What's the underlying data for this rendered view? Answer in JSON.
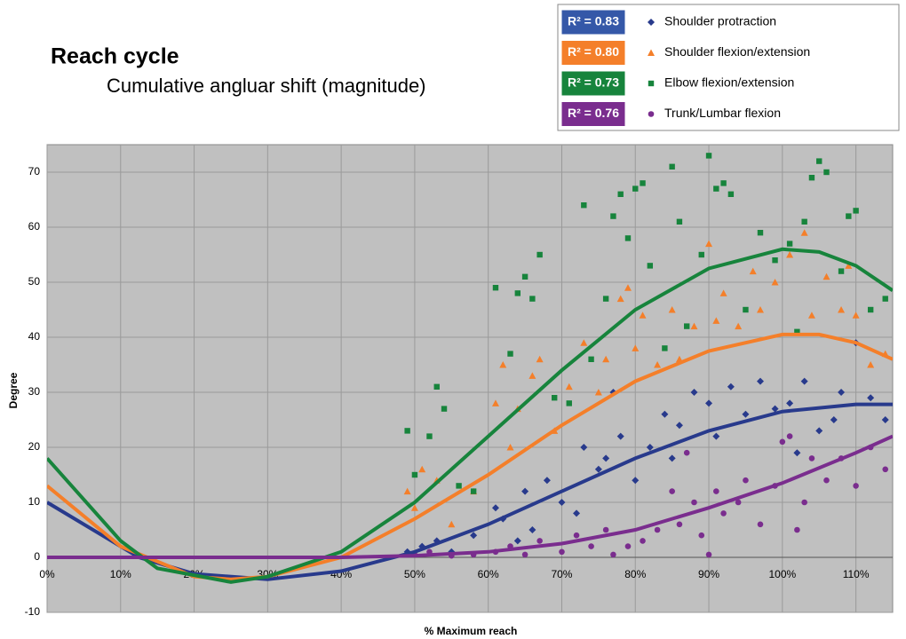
{
  "chart_data": {
    "type": "scatter",
    "title": "Reach cycle",
    "subtitle": "Cumulative angluar shift (magnitude)",
    "x_label": "% Maximum reach",
    "y_label": "Degree",
    "xlim": [
      0,
      115
    ],
    "ylim": [
      -10,
      75
    ],
    "xticks": [
      {
        "value": 0,
        "label": "0%"
      },
      {
        "value": 10,
        "label": "10%"
      },
      {
        "value": 20,
        "label": "20%"
      },
      {
        "value": 30,
        "label": "30%"
      },
      {
        "value": 40,
        "label": "40%"
      },
      {
        "value": 50,
        "label": "50%"
      },
      {
        "value": 60,
        "label": "60%"
      },
      {
        "value": 70,
        "label": "70%"
      },
      {
        "value": 80,
        "label": "80%"
      },
      {
        "value": 90,
        "label": "90%"
      },
      {
        "value": 100,
        "label": "100%"
      },
      {
        "value": 110,
        "label": "110%"
      }
    ],
    "yticks": [
      -10,
      0,
      10,
      20,
      30,
      40,
      50,
      60,
      70
    ],
    "grid": true,
    "legend": "top-right",
    "series": [
      {
        "name": "Shoulder protraction",
        "color": "#283a8c",
        "marker": "diamond",
        "r2_label": "R² = 0.83",
        "badge_color": "#3558a8",
        "x": [
          49,
          51,
          53,
          55,
          58,
          61,
          62,
          64,
          65,
          66,
          68,
          70,
          72,
          73,
          75,
          76,
          77,
          78,
          80,
          82,
          84,
          85,
          86,
          88,
          90,
          91,
          93,
          95,
          97,
          99,
          101,
          102,
          103,
          105,
          107,
          108,
          110,
          112,
          114
        ],
        "values": [
          1,
          2,
          3,
          1,
          4,
          9,
          7,
          3,
          12,
          5,
          14,
          10,
          8,
          20,
          16,
          18,
          30,
          22,
          14,
          20,
          26,
          18,
          24,
          30,
          28,
          22,
          31,
          26,
          32,
          27,
          28,
          19,
          32,
          23,
          25,
          30,
          39,
          29,
          25
        ],
        "trend": {
          "x": [
            0,
            10,
            12.5,
            20,
            30,
            40,
            50,
            60,
            70,
            80,
            90,
            100,
            110,
            115
          ],
          "values": [
            10,
            2,
            0,
            -3,
            -4,
            -2.5,
            1,
            6,
            12,
            18,
            23,
            26.5,
            27.8,
            27.8
          ]
        }
      },
      {
        "name": "Shoulder flexion/extension",
        "color": "#f47f2a",
        "marker": "triangle",
        "r2_label": "R² = 0.80",
        "badge_color": "#f47f2a",
        "x": [
          49,
          50,
          51,
          53,
          55,
          58,
          61,
          62,
          63,
          64,
          66,
          67,
          69,
          71,
          73,
          75,
          76,
          78,
          79,
          80,
          81,
          83,
          85,
          86,
          88,
          90,
          91,
          92,
          94,
          96,
          97,
          99,
          101,
          103,
          104,
          106,
          108,
          109,
          110,
          112,
          114
        ],
        "values": [
          12,
          9,
          16,
          14,
          6,
          12,
          28,
          35,
          20,
          27,
          33,
          36,
          23,
          31,
          39,
          30,
          36,
          47,
          49,
          38,
          44,
          35,
          45,
          36,
          42,
          57,
          43,
          48,
          42,
          52,
          45,
          50,
          55,
          59,
          44,
          51,
          45,
          53,
          44,
          35,
          37
        ],
        "trend": {
          "x": [
            0,
            10,
            20,
            25,
            30,
            40,
            50,
            60,
            70,
            80,
            90,
            100,
            105,
            110,
            115
          ],
          "values": [
            13,
            2,
            -3.5,
            -4,
            -3.5,
            0,
            7,
            15,
            24,
            32,
            37.5,
            40.5,
            40.5,
            39,
            36
          ]
        }
      },
      {
        "name": "Elbow flexion/extension",
        "color": "#17843c",
        "marker": "square",
        "r2_label": "R² = 0.73",
        "badge_color": "#17843c",
        "x": [
          49,
          50,
          52,
          53,
          54,
          56,
          58,
          61,
          63,
          64,
          65,
          66,
          67,
          69,
          71,
          73,
          74,
          76,
          77,
          78,
          79,
          80,
          81,
          82,
          84,
          85,
          86,
          87,
          89,
          90,
          91,
          92,
          93,
          95,
          97,
          99,
          101,
          102,
          103,
          104,
          105,
          106,
          108,
          109,
          110,
          112,
          114
        ],
        "values": [
          23,
          15,
          22,
          31,
          27,
          13,
          12,
          49,
          37,
          48,
          51,
          47,
          55,
          29,
          28,
          64,
          36,
          47,
          62,
          66,
          58,
          67,
          68,
          53,
          38,
          71,
          61,
          42,
          55,
          73,
          67,
          68,
          66,
          45,
          59,
          54,
          57,
          41,
          61,
          69,
          72,
          70,
          52,
          62,
          63,
          45,
          47
        ],
        "trend": {
          "x": [
            0,
            10,
            15,
            25,
            30,
            40,
            50,
            60,
            70,
            80,
            90,
            100,
            105,
            110,
            115
          ],
          "values": [
            18,
            3,
            -2,
            -4.5,
            -3.5,
            1,
            10,
            22,
            34,
            45,
            52.5,
            56,
            55.5,
            53,
            48.5
          ]
        }
      },
      {
        "name": "Trunk/Lumbar flexion",
        "color": "#7a2d8e",
        "marker": "circle",
        "r2_label": "R² = 0.76",
        "badge_color": "#7a2d8e",
        "x": [
          50,
          52,
          55,
          58,
          61,
          63,
          65,
          67,
          70,
          72,
          74,
          76,
          77,
          79,
          81,
          83,
          85,
          86,
          87,
          88,
          89,
          90,
          91,
          92,
          94,
          95,
          97,
          99,
          100,
          101,
          102,
          103,
          104,
          106,
          108,
          110,
          112,
          114
        ],
        "values": [
          0.5,
          1,
          0.3,
          0.5,
          1,
          2,
          0.5,
          3,
          1,
          4,
          2,
          5,
          0.5,
          2,
          3,
          5,
          12,
          6,
          19,
          10,
          4,
          0.5,
          12,
          8,
          10,
          14,
          6,
          13,
          21,
          22,
          5,
          10,
          18,
          14,
          18,
          13,
          20,
          16
        ],
        "trend": {
          "x": [
            0,
            20,
            40,
            50,
            60,
            70,
            80,
            90,
            100,
            110,
            115
          ],
          "values": [
            0,
            0,
            0,
            0.3,
            1,
            2.5,
            5,
            9,
            13.5,
            19,
            22
          ]
        }
      }
    ]
  }
}
